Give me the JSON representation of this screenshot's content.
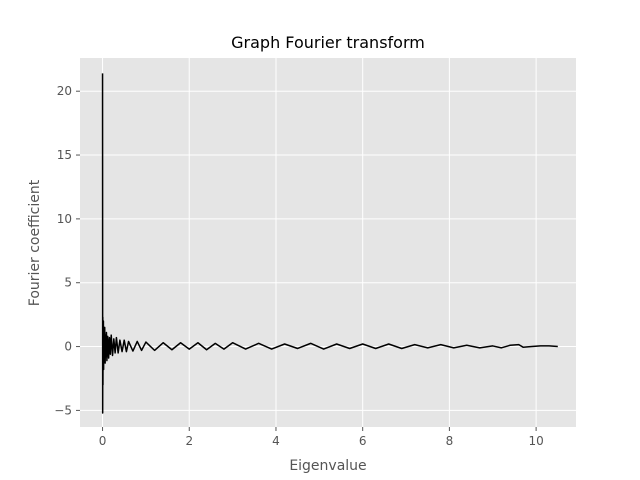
{
  "chart_data": {
    "type": "line",
    "title": "Graph Fourier transform",
    "xlabel": "Eigenvalue",
    "ylabel": "Fourier coefficient",
    "xlim": [
      -0.52,
      10.92
    ],
    "ylim": [
      -6.3,
      22.6
    ],
    "xticks": [
      0,
      2,
      4,
      6,
      8,
      10
    ],
    "yticks": [
      -5,
      0,
      5,
      10,
      15,
      20
    ],
    "xtick_labels": [
      "0",
      "2",
      "4",
      "6",
      "8",
      "10"
    ],
    "ytick_labels": [
      "−5",
      "0",
      "5",
      "10",
      "15",
      "20"
    ],
    "grid": true,
    "series": [
      {
        "name": "Fourier coefficient",
        "color": "#000000",
        "x": [
          0.0,
          0.003,
          0.006,
          0.009,
          0.012,
          0.016,
          0.02,
          0.025,
          0.03,
          0.04,
          0.05,
          0.06,
          0.07,
          0.08,
          0.09,
          0.1,
          0.12,
          0.14,
          0.16,
          0.18,
          0.2,
          0.23,
          0.26,
          0.29,
          0.32,
          0.36,
          0.4,
          0.45,
          0.5,
          0.55,
          0.6,
          0.7,
          0.8,
          0.9,
          1.0,
          1.2,
          1.4,
          1.6,
          1.8,
          2.0,
          2.2,
          2.4,
          2.6,
          2.8,
          3.0,
          3.3,
          3.6,
          3.9,
          4.2,
          4.5,
          4.8,
          5.1,
          5.4,
          5.7,
          6.0,
          6.3,
          6.6,
          6.9,
          7.2,
          7.5,
          7.8,
          8.1,
          8.4,
          8.7,
          9.0,
          9.2,
          9.4,
          9.6,
          9.7,
          9.9,
          10.1,
          10.3,
          10.5
        ],
        "values": [
          21.4,
          -5.2,
          2.3,
          -3.0,
          1.8,
          -1.5,
          2.0,
          -1.8,
          1.2,
          -1.0,
          1.5,
          -1.3,
          0.9,
          -0.8,
          1.1,
          -1.1,
          0.8,
          -0.9,
          0.7,
          -0.6,
          0.9,
          -0.7,
          0.6,
          -0.5,
          0.7,
          -0.5,
          0.5,
          -0.4,
          0.5,
          -0.4,
          0.4,
          -0.35,
          0.4,
          -0.3,
          0.35,
          -0.3,
          0.3,
          -0.25,
          0.3,
          -0.2,
          0.3,
          -0.25,
          0.25,
          -0.2,
          0.3,
          -0.2,
          0.25,
          -0.2,
          0.2,
          -0.15,
          0.25,
          -0.2,
          0.2,
          -0.15,
          0.2,
          -0.15,
          0.2,
          -0.15,
          0.15,
          -0.1,
          0.15,
          -0.1,
          0.1,
          -0.1,
          0.05,
          -0.1,
          0.1,
          0.15,
          -0.05,
          0.0,
          0.05,
          0.05,
          0.0
        ]
      }
    ]
  }
}
